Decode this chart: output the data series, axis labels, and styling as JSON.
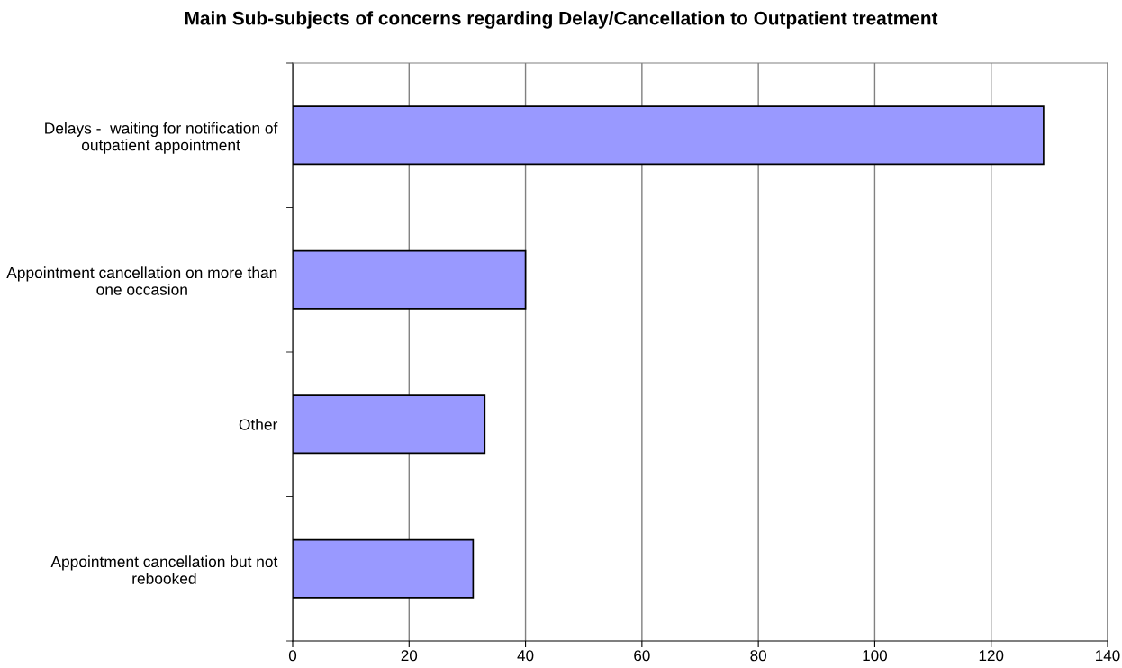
{
  "chart_data": {
    "type": "bar",
    "orientation": "horizontal",
    "title": "Main Sub-subjects of concerns regarding Delay/Cancellation to Outpatient treatment",
    "categories": [
      "Delays -  waiting for notification of\noutpatient appointment",
      "Appointment cancellation on more than\none occasion",
      "Other",
      "Appointment cancellation but not\nrebooked"
    ],
    "values": [
      129,
      40,
      33,
      31
    ],
    "color": "#9999ff",
    "xlim": [
      0,
      140
    ],
    "xticks": [
      0,
      20,
      40,
      60,
      80,
      100,
      120,
      140
    ],
    "grid": "x",
    "legend": false
  }
}
